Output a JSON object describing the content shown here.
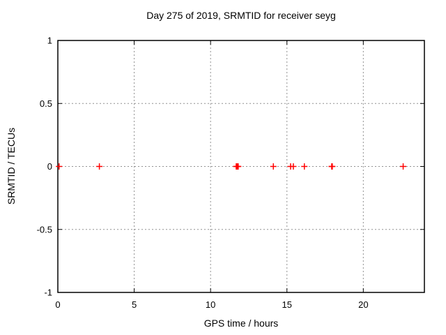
{
  "window": {
    "background": "#ffffff"
  },
  "chart_data": {
    "type": "scatter",
    "title": "Day 275 of 2019, SRMTID for receiver seyg",
    "xlabel": "GPS time / hours",
    "ylabel": "SRMTID / TECUs",
    "xlim": [
      0,
      24
    ],
    "ylim": [
      -1,
      1
    ],
    "xticks": [
      0,
      5,
      10,
      15,
      20
    ],
    "xtick_labels": [
      "0",
      "5",
      "10",
      "15",
      "20"
    ],
    "yticks": [
      -1,
      -0.5,
      0,
      0.5,
      1
    ],
    "ytick_labels": [
      "-1",
      "-0.5",
      "0",
      "0.5",
      "1"
    ],
    "grid": true,
    "grid_style": "dotted",
    "legend": false,
    "marker": {
      "shape": "plus",
      "color": "#ff0000",
      "size": 9
    },
    "series": [
      {
        "name": "SRMTID",
        "x": [
          0.08,
          2.72,
          11.68,
          11.72,
          11.77,
          11.81,
          14.11,
          15.24,
          15.42,
          16.14,
          17.93,
          17.97,
          22.61
        ],
        "y": [
          0,
          0,
          0,
          0,
          0,
          0,
          0,
          0,
          0,
          0,
          0,
          0,
          0
        ]
      }
    ]
  },
  "colors": {
    "background": "#ffffff",
    "text": "#000000",
    "border": "#000000",
    "grid": "#909090",
    "marker": "#ff0000"
  }
}
